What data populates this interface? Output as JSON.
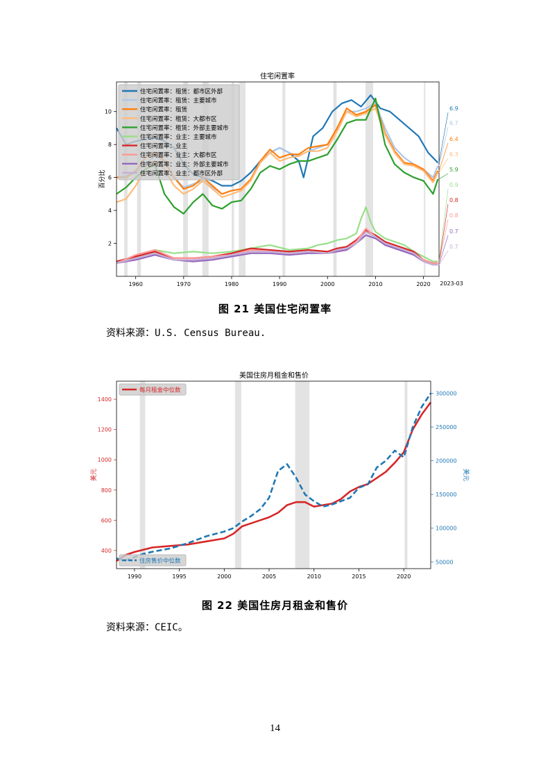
{
  "figure1": {
    "caption": "图 21   美国住宅闲置率",
    "source": "资料来源：U.S. Census Bureau.",
    "chart_data": {
      "type": "line",
      "title": "住宅闲置率",
      "ylabel": "百分比",
      "xlabel": "",
      "xlim": [
        1956,
        2023.25
      ],
      "ylim": [
        0,
        11.8
      ],
      "xticks": [
        1960,
        1970,
        1980,
        1990,
        2000,
        2010,
        2020
      ],
      "yticks": [
        2,
        4,
        6,
        8,
        10
      ],
      "end_label": "2023-03",
      "recessions": [
        [
          1957.6,
          1958.3
        ],
        [
          1960.3,
          1961.1
        ],
        [
          1969.9,
          1970.9
        ],
        [
          1973.9,
          1975.2
        ],
        [
          1980.0,
          1980.5
        ],
        [
          1981.5,
          1982.9
        ],
        [
          1990.6,
          1991.2
        ],
        [
          2001.2,
          2001.9
        ],
        [
          2007.9,
          2009.5
        ],
        [
          2020.1,
          2020.4
        ]
      ],
      "legend_position": "top-left",
      "series": [
        {
          "name": "住宅闲置率：租赁：都市区外部",
          "color": "#1f77b4",
          "end_value": "6.9",
          "x": [
            1956,
            1958,
            1960,
            1962,
            1964,
            1966,
            1968,
            1970,
            1972,
            1974,
            1976,
            1978,
            1980,
            1982,
            1984,
            1986,
            1988,
            1990,
            1992,
            1994,
            1995,
            1997,
            1999,
            2001,
            2003,
            2005,
            2007,
            2009,
            2011,
            2013,
            2015,
            2017,
            2019,
            2021,
            2023
          ],
          "y": [
            9,
            8,
            8.2,
            8.3,
            8.4,
            8.2,
            7.8,
            6.8,
            6.2,
            6.0,
            5.8,
            5.5,
            5.5,
            5.8,
            6.3,
            7.0,
            7.5,
            7.8,
            7.5,
            7.0,
            6.0,
            8.5,
            9.0,
            10.0,
            10.5,
            10.7,
            10.3,
            11.0,
            10.2,
            10.0,
            9.5,
            9.0,
            8.5,
            7.5,
            6.9
          ]
        },
        {
          "name": "住宅闲置率：租赁：主要城市",
          "color": "#aec7e8",
          "end_value": "6.7",
          "x": [
            1956,
            1958,
            1960,
            1962,
            1964,
            1966,
            1968,
            1970,
            1972,
            1974,
            1976,
            1978,
            1980,
            1982,
            1984,
            1986,
            1988,
            1990,
            1992,
            1994,
            1996,
            1998,
            2000,
            2002,
            2004,
            2006,
            2008,
            2010,
            2012,
            2014,
            2016,
            2018,
            2020,
            2022,
            2023
          ],
          "y": [
            6,
            6.1,
            6.3,
            6.8,
            7.3,
            7.0,
            6.0,
            5.4,
            5.6,
            5.8,
            5.4,
            5.0,
            5.2,
            5.3,
            5.8,
            7.0,
            7.5,
            7.8,
            7.5,
            7.3,
            7.6,
            7.8,
            8.0,
            9.0,
            10.0,
            10.0,
            10.2,
            10.5,
            9.0,
            7.8,
            7.2,
            6.8,
            6.5,
            6.0,
            6.7
          ]
        },
        {
          "name": "住宅闲置率：租赁",
          "color": "#ff7f0e",
          "end_value": "6.4",
          "x": [
            1956,
            1958,
            1960,
            1962,
            1964,
            1966,
            1968,
            1970,
            1972,
            1974,
            1976,
            1978,
            1980,
            1982,
            1984,
            1986,
            1988,
            1990,
            1992,
            1994,
            1996,
            1998,
            2000,
            2002,
            2004,
            2006,
            2008,
            2010,
            2012,
            2014,
            2016,
            2018,
            2020,
            2022,
            2023
          ],
          "y": [
            6,
            6.0,
            6.4,
            7.2,
            7.5,
            7.0,
            6.0,
            5.3,
            5.5,
            6.0,
            5.5,
            5.0,
            5.2,
            5.3,
            5.9,
            7.0,
            7.7,
            7.2,
            7.4,
            7.4,
            7.8,
            7.9,
            8.0,
            9.0,
            10.2,
            9.8,
            10.0,
            10.4,
            8.7,
            7.6,
            6.9,
            6.8,
            6.5,
            5.8,
            6.4
          ]
        },
        {
          "name": "住宅闲置率：租赁：大都市区",
          "color": "#ffbb78",
          "end_value": "6.3",
          "x": [
            1956,
            1958,
            1960,
            1962,
            1964,
            1966,
            1968,
            1970,
            1972,
            1974,
            1976,
            1978,
            1980,
            1982,
            1984,
            1986,
            1988,
            1990,
            1992,
            1994,
            1996,
            1998,
            2000,
            2002,
            2004,
            2006,
            2008,
            2010,
            2012,
            2014,
            2016,
            2018,
            2020,
            2022,
            2023
          ],
          "y": [
            4.5,
            4.7,
            5.5,
            6.5,
            7.0,
            6.5,
            5.5,
            5.0,
            5.3,
            5.8,
            5.3,
            4.8,
            5.0,
            5.2,
            5.8,
            6.9,
            7.5,
            7.0,
            7.2,
            7.3,
            7.6,
            7.6,
            7.8,
            8.8,
            10.0,
            9.7,
            9.9,
            10.2,
            8.6,
            7.5,
            6.8,
            6.7,
            6.4,
            5.7,
            6.3
          ]
        },
        {
          "name": "住宅闲置率：租赁：外部主要城市",
          "color": "#2ca02c",
          "end_value": "5.9",
          "x": [
            1956,
            1958,
            1960,
            1962,
            1964,
            1966,
            1968,
            1970,
            1972,
            1974,
            1976,
            1978,
            1980,
            1982,
            1984,
            1986,
            1988,
            1990,
            1992,
            1994,
            1996,
            1998,
            2000,
            2002,
            2004,
            2006,
            2008,
            2010,
            2012,
            2014,
            2016,
            2018,
            2020,
            2022,
            2023
          ],
          "y": [
            5,
            5.4,
            6.0,
            6.5,
            6.8,
            5.0,
            4.2,
            3.8,
            4.5,
            5.0,
            4.3,
            4.1,
            4.5,
            4.6,
            5.3,
            6.3,
            6.7,
            6.5,
            6.8,
            7.0,
            7.0,
            7.2,
            7.4,
            8.3,
            9.3,
            9.5,
            9.5,
            10.8,
            8.0,
            6.8,
            6.3,
            6.0,
            5.8,
            5.0,
            5.9
          ]
        },
        {
          "name": "住宅闲置率：业主：主要城市",
          "color": "#98df8a",
          "end_value": "0.9",
          "x": [
            1956,
            1960,
            1964,
            1968,
            1972,
            1976,
            1980,
            1984,
            1988,
            1992,
            1996,
            1998,
            2000,
            2002,
            2004,
            2006,
            2007,
            2008,
            2009,
            2010,
            2012,
            2014,
            2016,
            2018,
            2020,
            2022,
            2023
          ],
          "y": [
            0.9,
            1.2,
            1.6,
            1.4,
            1.5,
            1.4,
            1.5,
            1.7,
            1.9,
            1.6,
            1.7,
            1.9,
            2.0,
            2.2,
            2.3,
            2.6,
            3.5,
            4.2,
            3.3,
            2.7,
            2.3,
            2.1,
            1.9,
            1.5,
            1.2,
            0.9,
            0.9
          ]
        },
        {
          "name": "住宅闲置率：业主",
          "color": "#d62728",
          "end_value": "0.8",
          "x": [
            1956,
            1960,
            1964,
            1968,
            1972,
            1976,
            1980,
            1984,
            1988,
            1992,
            1996,
            2000,
            2002,
            2004,
            2006,
            2008,
            2010,
            2012,
            2014,
            2016,
            2018,
            2020,
            2022,
            2023
          ],
          "y": [
            0.9,
            1.2,
            1.5,
            1.1,
            1.1,
            1.2,
            1.4,
            1.7,
            1.6,
            1.5,
            1.6,
            1.5,
            1.7,
            1.8,
            2.2,
            2.8,
            2.5,
            2.1,
            1.9,
            1.7,
            1.5,
            1.0,
            0.8,
            0.8
          ]
        },
        {
          "name": "住宅闲置率：业主：大都市区",
          "color": "#ff9896",
          "end_value": "0.8",
          "x": [
            1956,
            1960,
            1964,
            1968,
            1972,
            1976,
            1980,
            1984,
            1988,
            1992,
            1996,
            2000,
            2002,
            2004,
            2006,
            2008,
            2010,
            2012,
            2014,
            2016,
            2018,
            2020,
            2022,
            2023
          ],
          "y": [
            0.8,
            1.3,
            1.6,
            1.1,
            1.1,
            1.2,
            1.3,
            1.6,
            1.5,
            1.4,
            1.5,
            1.4,
            1.6,
            1.7,
            2.1,
            2.9,
            2.4,
            2.0,
            1.8,
            1.6,
            1.4,
            1.0,
            0.8,
            0.8
          ]
        },
        {
          "name": "住宅闲置率：业主：外部主要城市",
          "color": "#9467bd",
          "end_value": "0.7",
          "x": [
            1956,
            1960,
            1964,
            1968,
            1972,
            1976,
            1980,
            1984,
            1988,
            1992,
            1996,
            2000,
            2002,
            2004,
            2006,
            2008,
            2010,
            2012,
            2014,
            2016,
            2018,
            2020,
            2022,
            2023
          ],
          "y": [
            0.8,
            1.0,
            1.3,
            1.0,
            0.9,
            1.0,
            1.2,
            1.4,
            1.4,
            1.3,
            1.4,
            1.4,
            1.5,
            1.6,
            2.0,
            2.5,
            2.3,
            1.9,
            1.7,
            1.5,
            1.3,
            0.9,
            0.7,
            0.7
          ]
        },
        {
          "name": "住宅闲置率：业主：都市区外部",
          "color": "#c5b0d5",
          "end_value": "0.7",
          "x": [
            1956,
            1960,
            1964,
            1968,
            1972,
            1976,
            1980,
            1984,
            1988,
            1992,
            1996,
            2000,
            2002,
            2004,
            2006,
            2008,
            2010,
            2012,
            2014,
            2016,
            2018,
            2020,
            2022,
            2023
          ],
          "y": [
            0.8,
            1.1,
            1.4,
            1.0,
            1.0,
            1.1,
            1.3,
            1.5,
            1.5,
            1.4,
            1.5,
            1.4,
            1.6,
            1.7,
            2.0,
            2.7,
            2.4,
            2.0,
            1.8,
            1.6,
            1.4,
            0.9,
            0.7,
            0.7
          ]
        }
      ]
    }
  },
  "figure2": {
    "caption": "图 22   美国住房月租金和售价",
    "source": "资料来源：CEIC。",
    "chart_data": {
      "type": "line",
      "title": "美国住房月租金和售价",
      "xlim": [
        1988,
        2023
      ],
      "xticks": [
        1990,
        1995,
        2000,
        2005,
        2010,
        2015,
        2020
      ],
      "left_axis": {
        "label": "美元",
        "ylim": [
          280,
          1520
        ],
        "ticks": [
          400,
          600,
          800,
          1000,
          1200,
          1400
        ],
        "color": "#d62728"
      },
      "right_axis": {
        "label": "美元",
        "ylim": [
          40000,
          318000
        ],
        "ticks": [
          50000,
          100000,
          150000,
          200000,
          250000,
          300000
        ],
        "color": "#1f77b4"
      },
      "recessions": [
        [
          1990.6,
          1991.2
        ],
        [
          2001.2,
          2001.9
        ],
        [
          2007.9,
          2009.5
        ],
        [
          2020.1,
          2020.4
        ]
      ],
      "series": [
        {
          "name": "每月租金中位数",
          "axis": "left",
          "color": "#d62728",
          "style": "solid",
          "legend_position": "top-left",
          "x": [
            1988,
            1989,
            1990,
            1992,
            1994,
            1996,
            1998,
            2000,
            2001,
            2002,
            2003,
            2004,
            2005,
            2006,
            2007,
            2008,
            2009,
            2010,
            2011,
            2012,
            2013,
            2014,
            2015,
            2016,
            2017,
            2018,
            2019,
            2020,
            2021,
            2022,
            2023
          ],
          "y": [
            330,
            370,
            390,
            420,
            430,
            440,
            460,
            480,
            510,
            560,
            580,
            600,
            620,
            650,
            700,
            720,
            720,
            690,
            700,
            710,
            740,
            790,
            820,
            840,
            880,
            920,
            980,
            1050,
            1200,
            1300,
            1380
          ]
        },
        {
          "name": "住房售价中位数",
          "axis": "right",
          "color": "#1f77b4",
          "style": "dashed",
          "legend_position": "bottom-left",
          "x": [
            1988,
            1989,
            1990,
            1991,
            1992,
            1994,
            1996,
            1998,
            2000,
            2001,
            2002,
            2003,
            2004,
            2005,
            2006,
            2007,
            2008,
            2009,
            2010,
            2011,
            2012,
            2013,
            2014,
            2015,
            2016,
            2017,
            2018,
            2019,
            2020,
            2021,
            2022,
            2023
          ],
          "y": [
            55000,
            52000,
            57000,
            62000,
            65000,
            70000,
            78000,
            88000,
            95000,
            100000,
            110000,
            118000,
            128000,
            145000,
            185000,
            195000,
            175000,
            150000,
            140000,
            132000,
            135000,
            140000,
            145000,
            160000,
            165000,
            190000,
            200000,
            215000,
            205000,
            250000,
            280000,
            300000
          ]
        }
      ]
    }
  },
  "page_number": "14"
}
